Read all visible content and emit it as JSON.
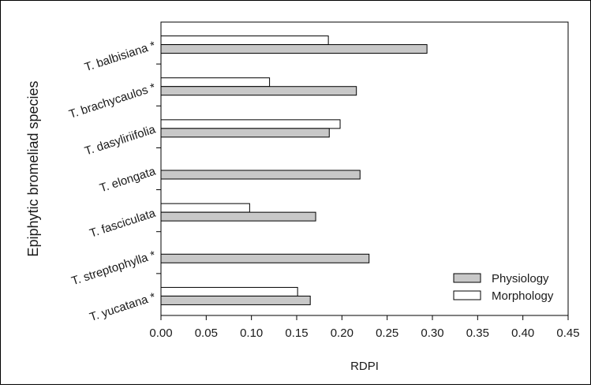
{
  "chart_data": {
    "type": "bar",
    "orientation": "horizontal",
    "title": "",
    "xlabel": "RDPI",
    "ylabel": "Epiphytic bromeliad species",
    "xlim": [
      0.0,
      0.45
    ],
    "xticks": [
      "0.00",
      "0.05",
      "0.10",
      "0.15",
      "0.20",
      "0.25",
      "0.30",
      "0.35",
      "0.40",
      "0.45"
    ],
    "grid": false,
    "legend_position": "bottom-right",
    "categories": [
      "T. balbisiana *",
      "T. brachycaulos *",
      "T. dasyliriifolia",
      "T. elongata",
      "T. fasciculata",
      "T. streptophylla *",
      "T. yucatana *"
    ],
    "series": [
      {
        "name": "Physiology",
        "color": "#c8c8c8",
        "values": [
          0.294,
          0.216,
          0.186,
          0.22,
          0.171,
          0.23,
          0.165
        ]
      },
      {
        "name": "Morphology",
        "color": "#ffffff",
        "values": [
          0.185,
          0.12,
          0.198,
          null,
          0.098,
          null,
          0.151
        ]
      }
    ]
  }
}
